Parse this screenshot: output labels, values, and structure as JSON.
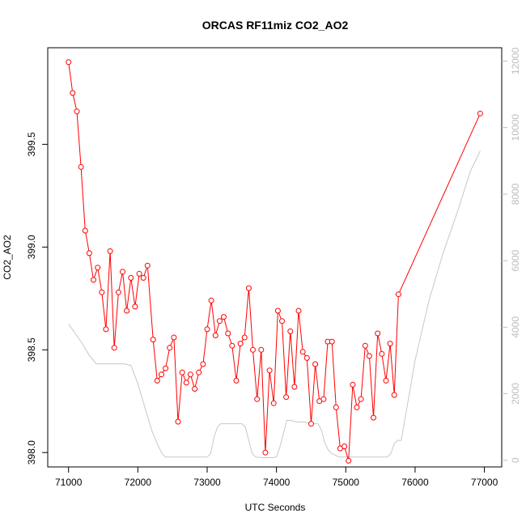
{
  "chart_data": {
    "type": "line",
    "title": "ORCAS RF11miz CO2_AO2",
    "xlabel": "UTC Seconds",
    "ylabel": "CO2_AO2",
    "xlim": [
      70700,
      77250
    ],
    "ylim": [
      397.93,
      399.97
    ],
    "y2lim": [
      -200,
      12400
    ],
    "x_ticks": [
      71000,
      72000,
      73000,
      74000,
      75000,
      76000,
      77000
    ],
    "y_ticks": [
      398.0,
      398.5,
      399.0,
      399.5
    ],
    "y_tick_labels": [
      "398.0",
      "398.5",
      "399.0",
      "399.5"
    ],
    "y2_ticks": [
      0,
      2000,
      4000,
      6000,
      8000,
      10000,
      12000
    ],
    "colors": {
      "co2": "#ff0000",
      "altitude": "#c8c8c8"
    },
    "series": [
      {
        "key": "co2",
        "axis": "left",
        "style": "line+open-circle",
        "x": [
          71000,
          71060,
          71120,
          71180,
          71240,
          71300,
          71360,
          71420,
          71480,
          71540,
          71600,
          71660,
          71720,
          71780,
          71840,
          71900,
          71960,
          72020,
          72080,
          72140,
          72220,
          72280,
          72340,
          72400,
          72460,
          72520,
          72580,
          72640,
          72700,
          72760,
          72820,
          72880,
          72940,
          73000,
          73060,
          73120,
          73180,
          73240,
          73300,
          73360,
          73420,
          73480,
          73540,
          73600,
          73660,
          73720,
          73780,
          73840,
          73900,
          73960,
          74020,
          74080,
          74140,
          74200,
          74260,
          74320,
          74380,
          74440,
          74500,
          74560,
          74620,
          74680,
          74740,
          74800,
          74860,
          74920,
          74980,
          75040,
          75100,
          75160,
          75220,
          75280,
          75340,
          75400,
          75460,
          75520,
          75580,
          75640,
          75700,
          75760,
          76940
        ],
        "y": [
          399.9,
          399.75,
          399.66,
          399.39,
          399.08,
          398.97,
          398.84,
          398.9,
          398.78,
          398.6,
          398.98,
          398.51,
          398.78,
          398.88,
          398.69,
          398.85,
          398.71,
          398.87,
          398.85,
          398.91,
          398.55,
          398.35,
          398.38,
          398.41,
          398.51,
          398.56,
          398.15,
          398.39,
          398.34,
          398.38,
          398.31,
          398.39,
          398.43,
          398.6,
          398.74,
          398.57,
          398.64,
          398.66,
          398.58,
          398.52,
          398.35,
          398.53,
          398.56,
          398.8,
          398.5,
          398.26,
          398.5,
          398.0,
          398.4,
          398.24,
          398.69,
          398.64,
          398.27,
          398.59,
          398.32,
          398.69,
          398.49,
          398.46,
          398.14,
          398.43,
          398.25,
          398.26,
          398.54,
          398.54,
          398.22,
          398.02,
          398.03,
          397.96,
          398.33,
          398.22,
          398.26,
          398.52,
          398.47,
          398.17,
          398.58,
          398.48,
          398.35,
          398.53,
          398.28,
          398.77,
          399.65
        ]
      },
      {
        "key": "altitude",
        "axis": "right",
        "style": "line",
        "x": [
          71000,
          71100,
          71200,
          71300,
          71400,
          71500,
          71600,
          71700,
          71800,
          71900,
          72000,
          72100,
          72200,
          72300,
          72350,
          72400,
          72500,
          72600,
          72700,
          72800,
          72900,
          73000,
          73050,
          73100,
          73150,
          73200,
          73300,
          73400,
          73500,
          73550,
          73600,
          73650,
          73700,
          73800,
          73900,
          73950,
          74000,
          74050,
          74100,
          74150,
          74200,
          74300,
          74400,
          74500,
          74600,
          74650,
          74700,
          74750,
          74800,
          74850,
          74900,
          75000,
          75100,
          75200,
          75300,
          75400,
          75500,
          75550,
          75600,
          75650,
          75700,
          75750,
          75800,
          75900,
          76000,
          76200,
          76400,
          76600,
          76800,
          76940
        ],
        "y": [
          4100,
          3800,
          3500,
          3150,
          2900,
          2900,
          2900,
          2900,
          2900,
          2850,
          2300,
          1600,
          900,
          400,
          200,
          100,
          100,
          100,
          100,
          100,
          100,
          100,
          200,
          700,
          1000,
          1100,
          1100,
          1100,
          1100,
          1000,
          600,
          200,
          100,
          80,
          80,
          80,
          100,
          400,
          800,
          1200,
          1200,
          1150,
          1150,
          1100,
          1100,
          900,
          500,
          300,
          200,
          150,
          100,
          100,
          100,
          100,
          100,
          100,
          100,
          100,
          100,
          200,
          500,
          600,
          600,
          1800,
          3000,
          4800,
          6200,
          7400,
          8700,
          9300
        ]
      }
    ]
  }
}
